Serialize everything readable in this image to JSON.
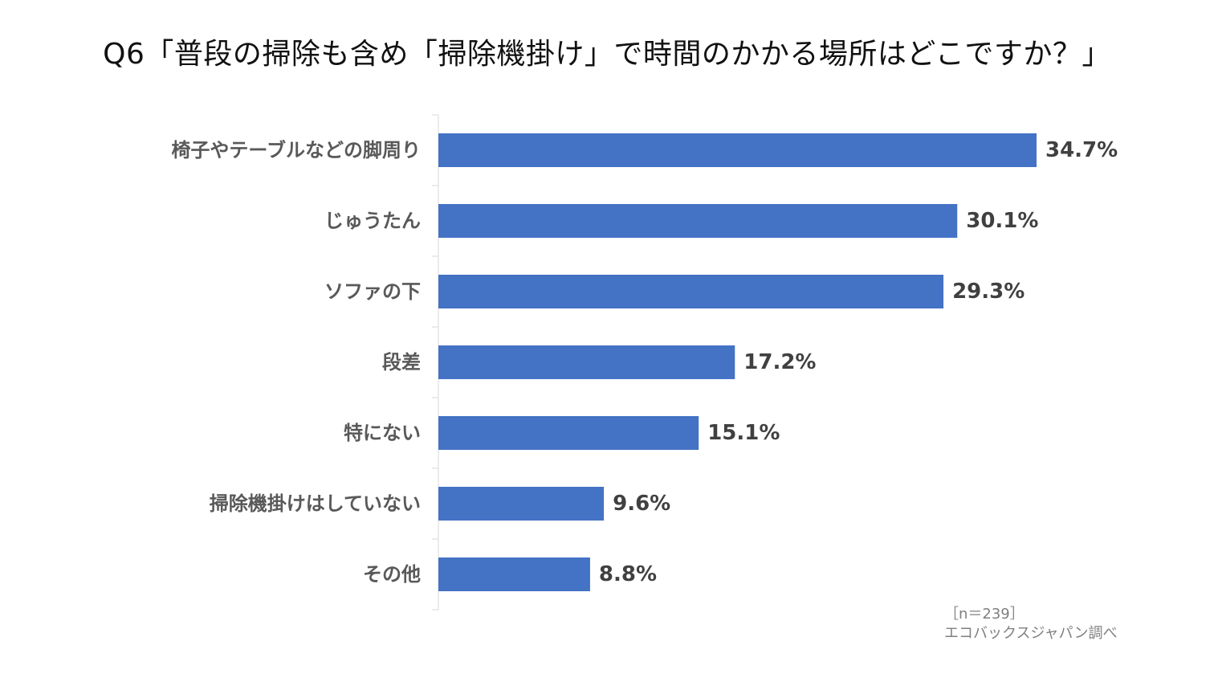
{
  "title": "Q6「普段の掃除も含め「掃除機掛け」で時間のかかる場所はどこですか？」",
  "sample_note": "［n＝239］",
  "source_note": "エコバックスジャパン調べ",
  "colors": {
    "bar": "#4472C4",
    "axis": "#D9D9D9",
    "category_text": "#595959",
    "value_text": "#404040"
  },
  "chart_data": {
    "type": "bar",
    "orientation": "horizontal",
    "categories": [
      "椅子やテーブルなどの脚周り",
      "じゅうたん",
      "ソファの下",
      "段差",
      "特にない",
      "掃除機掛けはしていない",
      "その他"
    ],
    "values": [
      34.7,
      30.1,
      29.3,
      17.2,
      15.1,
      9.6,
      8.8
    ],
    "value_labels": [
      "34.7%",
      "30.1%",
      "29.3%",
      "17.2%",
      "15.1%",
      "9.6%",
      "8.8%"
    ],
    "unit": "%",
    "xlim": [
      0,
      35
    ],
    "grid": false,
    "legend": "none"
  }
}
